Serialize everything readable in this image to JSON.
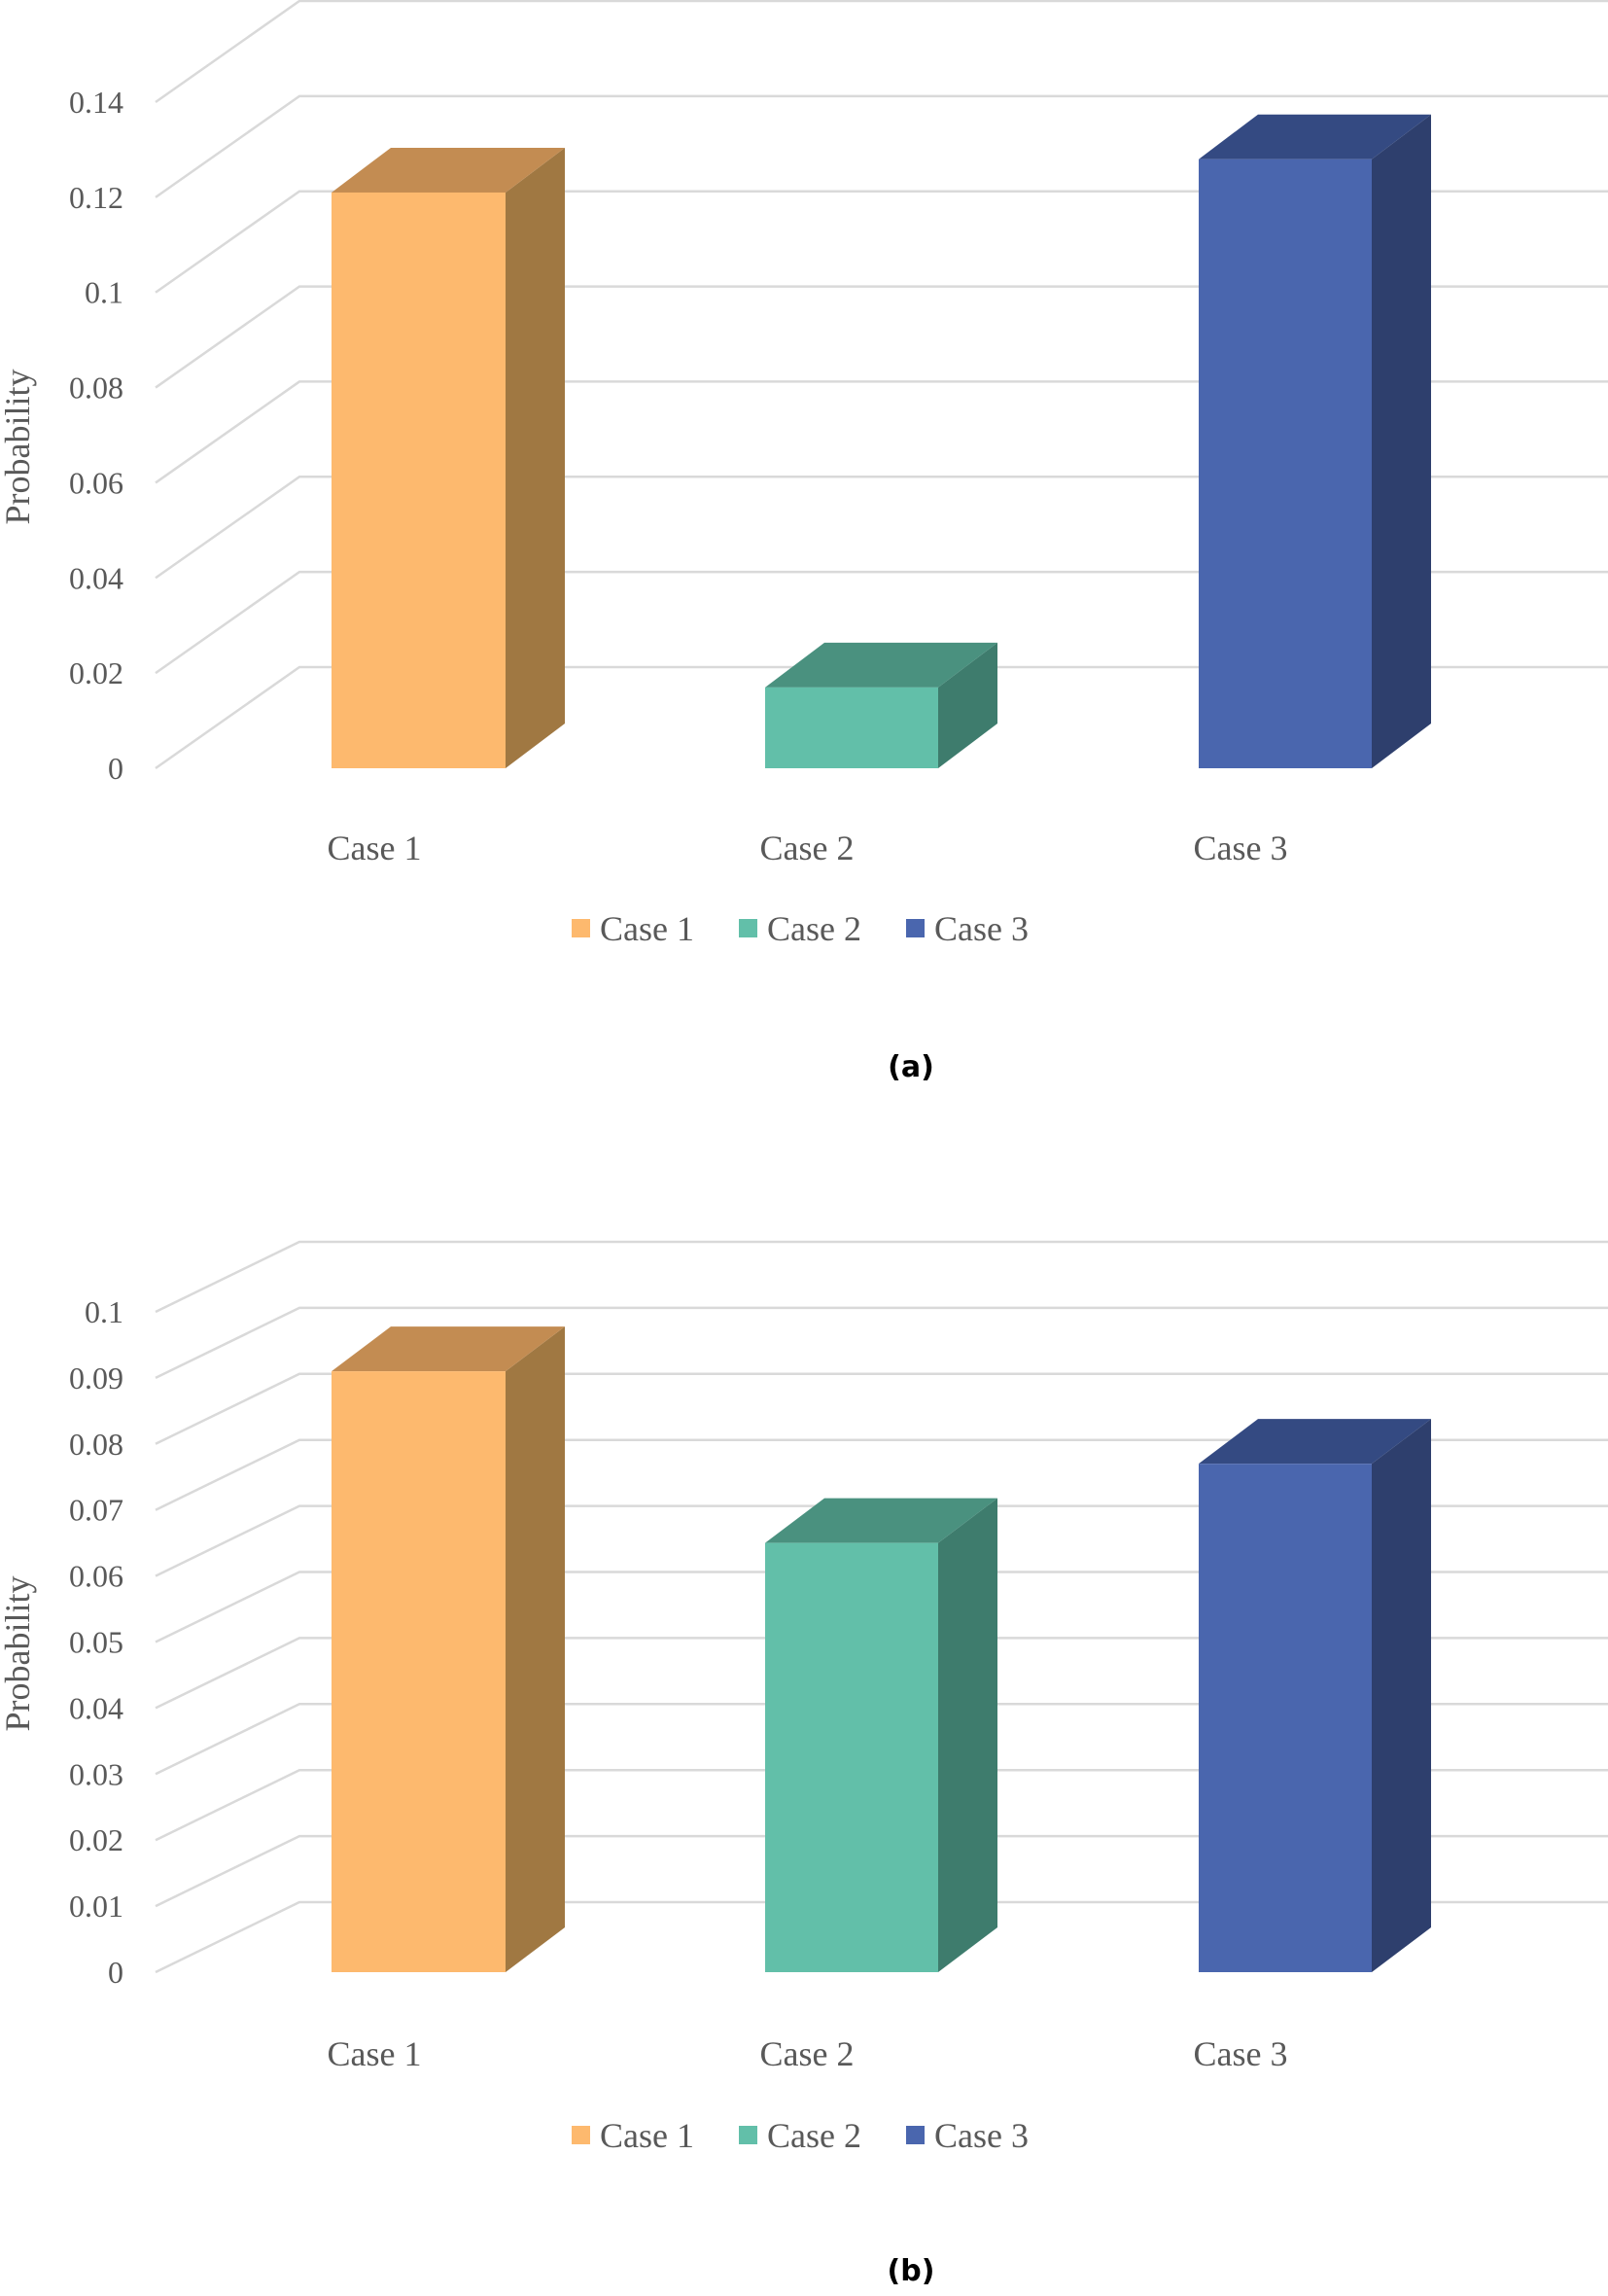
{
  "chart_data": [
    {
      "type": "bar",
      "panel_label": "(a)",
      "categories": [
        "Case 1",
        "Case 2",
        "Case 3"
      ],
      "series": [
        {
          "name": "Case 1",
          "values": [
            0.121,
            null,
            null
          ]
        },
        {
          "name": "Case 2",
          "values": [
            null,
            0.017,
            null
          ]
        },
        {
          "name": "Case 3",
          "values": [
            null,
            null,
            0.128
          ]
        }
      ],
      "values": [
        0.121,
        0.017,
        0.128
      ],
      "ylabel": "Probability",
      "ylim": [
        0,
        0.14
      ],
      "yticks": [
        "0",
        "0.02",
        "0.04",
        "0.06",
        "0.08",
        "0.1",
        "0.12",
        "0.14"
      ],
      "grid": true,
      "legend": "bottom",
      "style": "3d-column"
    },
    {
      "type": "bar",
      "panel_label": "(b)",
      "categories": [
        "Case 1",
        "Case 2",
        "Case 3"
      ],
      "series": [
        {
          "name": "Case 1",
          "values": [
            0.091,
            null,
            null
          ]
        },
        {
          "name": "Case 2",
          "values": [
            null,
            0.065,
            null
          ]
        },
        {
          "name": "Case 3",
          "values": [
            null,
            null,
            0.077
          ]
        }
      ],
      "values": [
        0.091,
        0.065,
        0.077
      ],
      "ylabel": "Probability",
      "ylim": [
        0,
        0.1
      ],
      "yticks": [
        "0",
        "0.01",
        "0.02",
        "0.03",
        "0.04",
        "0.05",
        "0.06",
        "0.07",
        "0.08",
        "0.09",
        "0.1"
      ],
      "grid": true,
      "legend": "bottom",
      "style": "3d-column"
    }
  ],
  "colors": {
    "case1": {
      "front": "#fdb96e",
      "side": "#a07842",
      "top": "#c38c52"
    },
    "case2": {
      "front": "#62bfa9",
      "side": "#3e7c6d",
      "top": "#4a917f"
    },
    "case3": {
      "front": "#4a66ae",
      "side": "#2e3f6d",
      "top": "#344a82"
    },
    "grid": "#d9d9d9",
    "text": "#595959"
  }
}
